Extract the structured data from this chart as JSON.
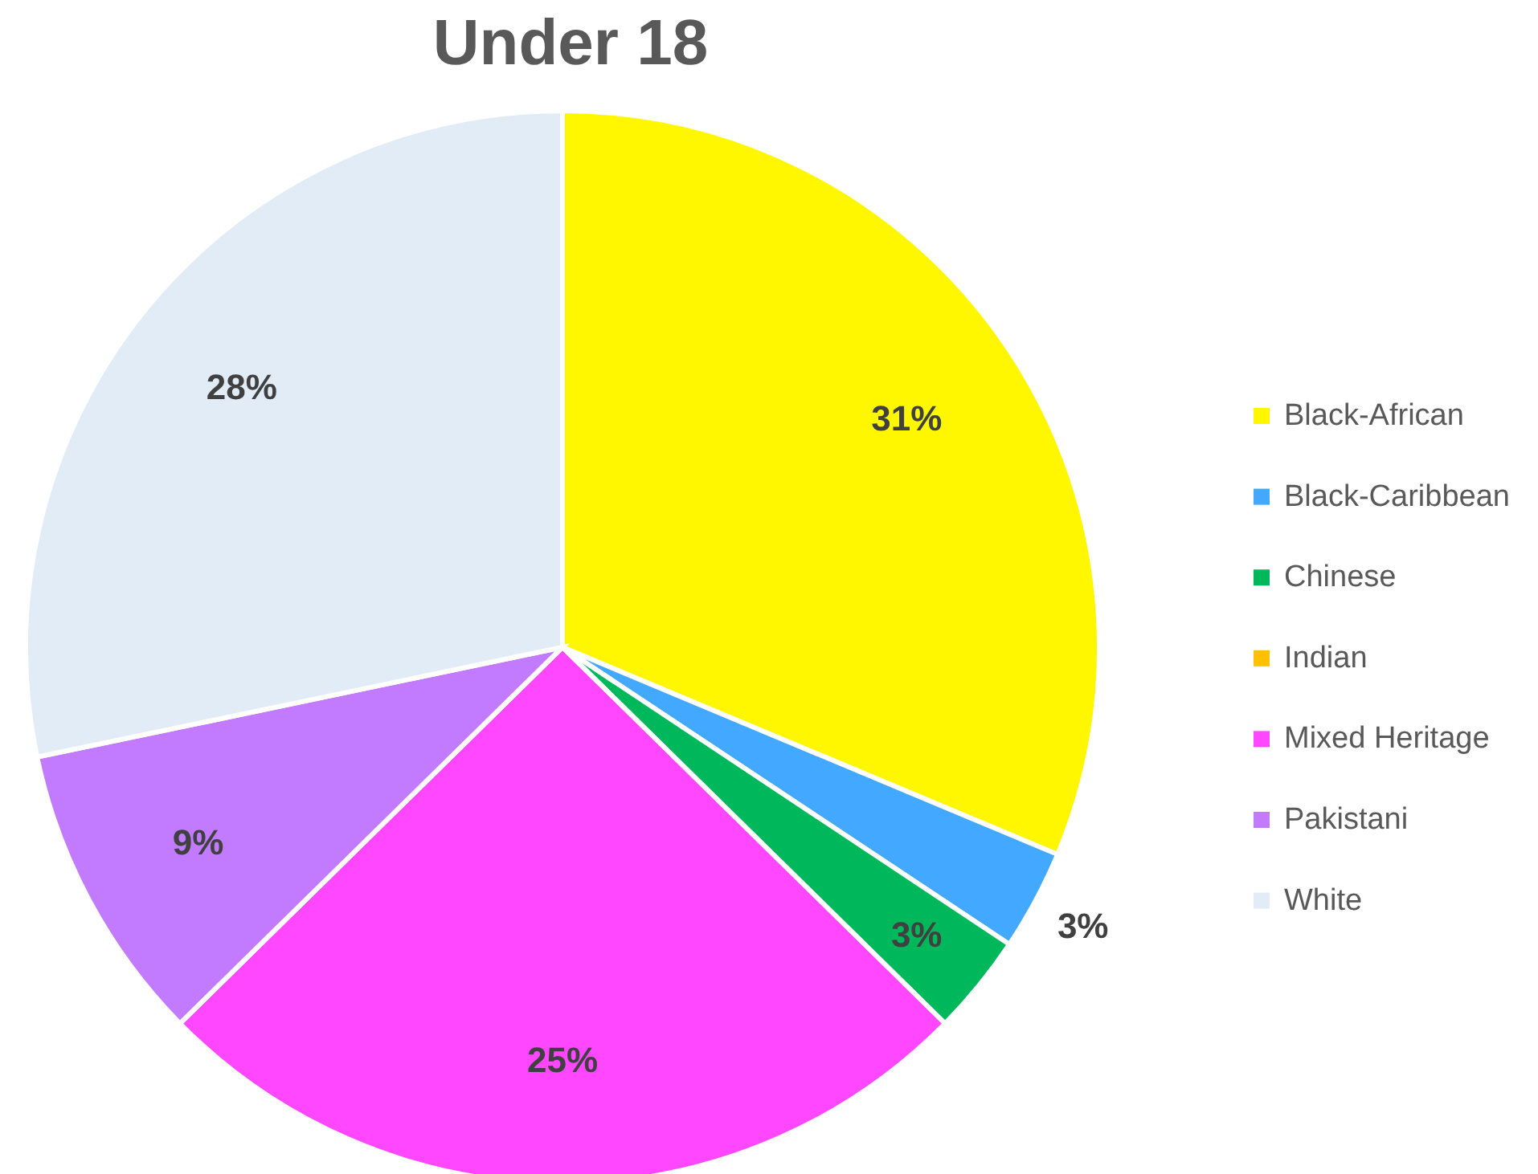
{
  "chart_data": {
    "type": "pie",
    "title": "Under 18",
    "categories": [
      "Black-African",
      "Black-Caribbean",
      "Chinese",
      "Indian",
      "Mixed Heritage",
      "Pakistani",
      "White"
    ],
    "values": [
      31,
      3,
      3,
      0,
      25,
      9,
      28
    ],
    "value_labels": [
      "31%",
      "3%",
      "3%",
      null,
      "25%",
      "9%",
      "28%"
    ],
    "colors": [
      "#fff700",
      "#43a8ff",
      "#00b85c",
      "#ffc000",
      "#ff47ff",
      "#c27bff",
      "#e2ecf7"
    ],
    "legend": "right"
  }
}
